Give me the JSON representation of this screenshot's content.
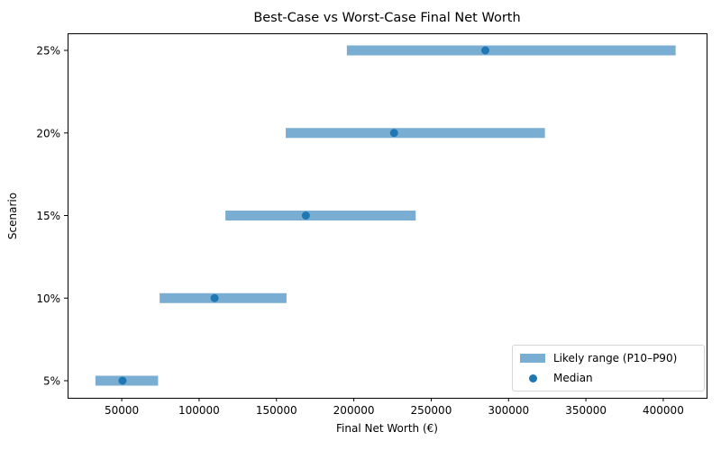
{
  "chart_data": {
    "type": "range-bar",
    "title": "Best-Case vs Worst-Case Final Net Worth",
    "xlabel": "Final Net Worth (€)",
    "ylabel": "Scenario",
    "xlim": [
      15000,
      428000
    ],
    "x_ticks": [
      50000,
      100000,
      150000,
      200000,
      250000,
      300000,
      350000,
      400000
    ],
    "x_tick_labels": [
      "50000",
      "100000",
      "150000",
      "200000",
      "250000",
      "300000",
      "350000",
      "400000"
    ],
    "categories": [
      "5%",
      "10%",
      "15%",
      "20%",
      "25%"
    ],
    "series": [
      {
        "name": "Likely range (P10–P90)",
        "type": "range",
        "low": [
          33000,
          74500,
          117000,
          156000,
          195500
        ],
        "high": [
          73500,
          156500,
          240000,
          323500,
          408000
        ]
      },
      {
        "name": "Median",
        "type": "scatter",
        "values": [
          50500,
          110000,
          169000,
          226000,
          285000
        ]
      }
    ],
    "grid": false,
    "legend_position": "lower right",
    "colors": {
      "range": "#1f77b4",
      "range_opacity": 0.6,
      "median": "#1f77b4"
    }
  },
  "legend": {
    "items": [
      {
        "label": "Likely range (P10–P90)"
      },
      {
        "label": "Median"
      }
    ]
  }
}
